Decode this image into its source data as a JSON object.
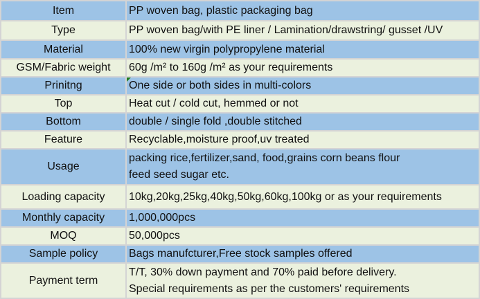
{
  "colors": {
    "blue_row": "#9dc3e6",
    "green_row": "#ebf1de",
    "grid": "#d4d4d4"
  },
  "rows": [
    {
      "label": "Item",
      "lines": [
        "PP woven bag, plastic packaging bag"
      ]
    },
    {
      "label": "Type",
      "lines": [
        "PP woven bag/with PE liner / Lamination/drawstring/ gusset /UV"
      ]
    },
    {
      "label": "Material",
      "lines": [
        "100% new virgin polypropylene material"
      ]
    },
    {
      "label": "GSM/Fabric weight",
      "lines": [
        "60g /m²  to 160g /m² as your requirements"
      ]
    },
    {
      "label": "Prinitng",
      "lines": [
        "One side or both sides in multi-colors"
      ]
    },
    {
      "label": "Top",
      "lines": [
        "Heat cut / cold cut, hemmed or not"
      ]
    },
    {
      "label": "Bottom",
      "lines": [
        "double / single fold ,double stitched"
      ]
    },
    {
      "label": "Feature",
      "lines": [
        "Recyclable,moisture proof,uv treated"
      ]
    },
    {
      "label": "Usage",
      "lines": [
        "packing rice,fertilizer,sand, food,grains corn beans flour",
        "feed seed sugar etc."
      ]
    },
    {
      "label": "Loading capacity",
      "lines": [
        "10kg,20kg,25kg,40kg,50kg,60kg,100kg or as your requirements"
      ]
    },
    {
      "label": "Monthly capacity",
      "lines": [
        "1,000,000pcs"
      ]
    },
    {
      "label": "MOQ",
      "lines": [
        "50,000pcs"
      ]
    },
    {
      "label": "Sample policy",
      "lines": [
        "Bags manufcturer,Free stock samples offered"
      ]
    },
    {
      "label": "Payment term",
      "lines": [
        "T/T, 30% down payment and 70% paid before delivery.",
        "Special requirements as per the customers' requirements"
      ]
    }
  ]
}
